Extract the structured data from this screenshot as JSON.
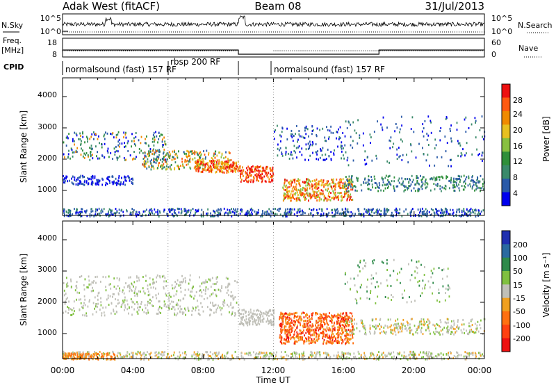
{
  "header": {
    "station": "Adak West (fitACF)",
    "beam": "Beam 08",
    "date": "31/Jul/2013"
  },
  "noise_panel": {
    "left_label": "N.Sky",
    "right_label": "N.Search",
    "left_ticks": [
      "10^5",
      "10^0"
    ],
    "right_ticks": [
      "10^5",
      "10^0"
    ]
  },
  "freq_panel": {
    "left_label_1": "Freq.",
    "left_label_2": "[MHz]",
    "left_ticks": [
      "18",
      "8"
    ],
    "right_ticks": [
      "60",
      "0"
    ],
    "right_label": "Nave"
  },
  "cpid": {
    "label": "CPID",
    "segments": [
      {
        "text": "normalsound (fast) 157 RF"
      },
      {
        "text": "rbsp 200 RF"
      },
      {
        "text": "normalsound (fast) 157 RF"
      }
    ]
  },
  "x_axis": {
    "label": "Time UT",
    "ticks": [
      "00:00",
      "04:00",
      "08:00",
      "12:00",
      "16:00",
      "20:00",
      "00:00"
    ]
  },
  "power_panel": {
    "ylabel": "Slant Range [km]",
    "yticks": [
      "4000",
      "3000",
      "2000",
      "1000"
    ],
    "colorbar_label": "Power [dB]",
    "colorbar_ticks": [
      "28",
      "24",
      "20",
      "16",
      "12",
      "8",
      "4"
    ],
    "colors": [
      "#0000ee",
      "#2a5aa8",
      "#3a8a6a",
      "#2f8f3a",
      "#88c040",
      "#e8c020",
      "#f08a00",
      "#ff5a10",
      "#ee1010"
    ]
  },
  "velocity_panel": {
    "ylabel": "Slant Range [km]",
    "yticks": [
      "4000",
      "3000",
      "2000",
      "1000"
    ],
    "colorbar_label": "Velocity [m s⁻¹]",
    "colorbar_ticks": [
      "200",
      "100",
      "50",
      "15",
      "-15",
      "-50",
      "-100",
      "-200"
    ],
    "colors": [
      "#2030b0",
      "#2a6aa0",
      "#2e8a4a",
      "#80c040",
      "#c0c0b8",
      "#f0a020",
      "#ff7010",
      "#ff4010",
      "#ee1010"
    ]
  },
  "chart_data": [
    {
      "type": "line",
      "title": "Adak West (fitACF)",
      "x": [
        "00:00",
        "04:00",
        "08:00",
        "12:00",
        "16:00",
        "20:00",
        "00:00"
      ],
      "series": [
        {
          "name": "N.Sky",
          "note": "noise level fluctuating near 10^0 to 10^5 scale"
        }
      ]
    },
    {
      "type": "line",
      "x_hours": [
        0,
        10,
        10,
        12,
        12,
        18,
        18,
        24
      ],
      "series": [
        {
          "name": "Freq. [MHz]",
          "values": [
            13,
            13,
            10,
            10,
            10,
            10,
            13,
            13
          ]
        },
        {
          "name": "Nave",
          "values": [
            20,
            20,
            20,
            20,
            20,
            20,
            20,
            20
          ]
        }
      ],
      "ylim": [
        8,
        18
      ]
    },
    {
      "type": "heatmap",
      "title": "Power [dB]",
      "xlabel": "Time UT",
      "ylabel": "Slant Range [km]",
      "xlim_hours": [
        0,
        24
      ],
      "ylim": [
        200,
        4600
      ],
      "colorbar": {
        "label": "Power [dB]",
        "ticks": [
          4,
          8,
          12,
          16,
          20,
          24,
          28
        ]
      }
    },
    {
      "type": "heatmap",
      "title": "Velocity",
      "xlabel": "Time UT",
      "ylabel": "Slant Range [km]",
      "xlim_hours": [
        0,
        24
      ],
      "ylim": [
        200,
        4600
      ],
      "colorbar": {
        "label": "Velocity [m s⁻¹]",
        "ticks": [
          200,
          100,
          50,
          15,
          -15,
          -50,
          -100,
          -200
        ]
      }
    }
  ]
}
